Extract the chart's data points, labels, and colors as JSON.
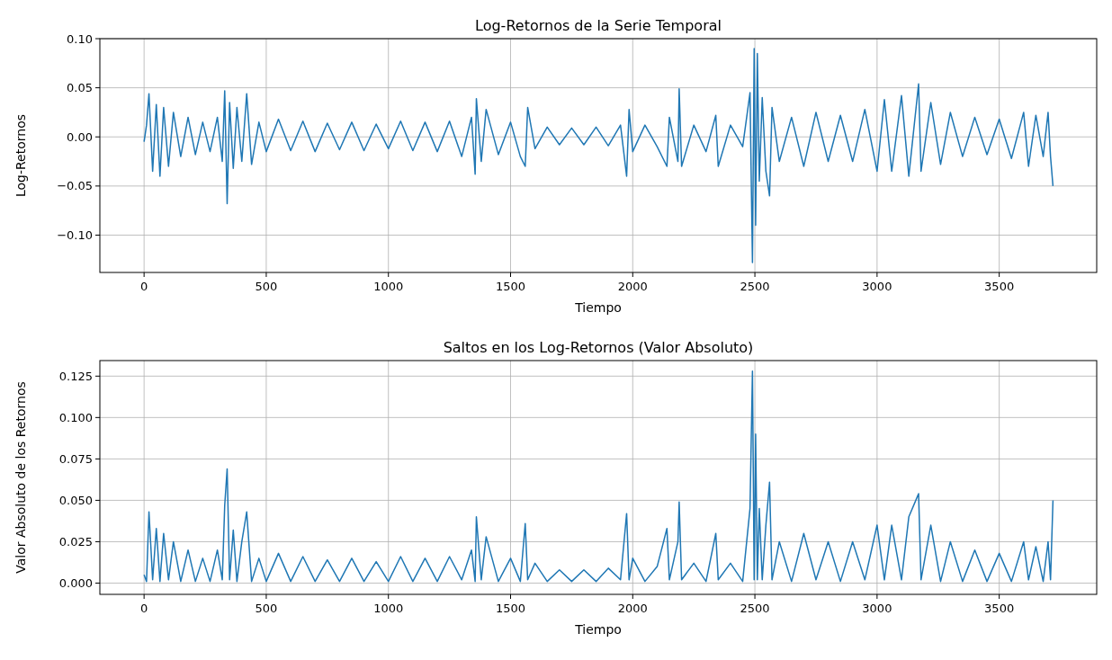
{
  "chart_data": [
    {
      "type": "line",
      "title": "Log-Retornos de la Serie Temporal",
      "xlabel": "Tiempo",
      "ylabel": "Log-Retornos",
      "xlim": [
        -181,
        3899
      ],
      "ylim": [
        -0.138,
        0.1
      ],
      "xticks": [
        0,
        500,
        1000,
        1500,
        2000,
        2500,
        3000,
        3500
      ],
      "yticks": [
        {
          "value": -0.1,
          "label": "−0.10"
        },
        {
          "value": -0.05,
          "label": "−0.05"
        },
        {
          "value": 0,
          "label": "0.00"
        },
        {
          "value": 0.05,
          "label": "0.05"
        },
        {
          "value": 0.1,
          "label": "0.10"
        }
      ],
      "grid": true,
      "line_style": "solid",
      "series": [
        {
          "color": "#1f77b4",
          "x": [
            0,
            10,
            20,
            35,
            50,
            65,
            80,
            100,
            120,
            150,
            180,
            210,
            240,
            270,
            300,
            320,
            330,
            340,
            350,
            365,
            380,
            400,
            420,
            440,
            470,
            500,
            550,
            600,
            650,
            700,
            750,
            800,
            850,
            900,
            950,
            1000,
            1050,
            1100,
            1150,
            1200,
            1250,
            1300,
            1340,
            1355,
            1360,
            1380,
            1400,
            1450,
            1500,
            1540,
            1560,
            1570,
            1600,
            1650,
            1700,
            1750,
            1800,
            1850,
            1900,
            1950,
            1975,
            1985,
            2000,
            2050,
            2100,
            2140,
            2150,
            2185,
            2190,
            2200,
            2250,
            2300,
            2340,
            2350,
            2400,
            2450,
            2480,
            2490,
            2497,
            2503,
            2510,
            2518,
            2530,
            2545,
            2560,
            2570,
            2600,
            2650,
            2700,
            2750,
            2800,
            2850,
            2900,
            2950,
            3000,
            3030,
            3060,
            3100,
            3130,
            3170,
            3180,
            3220,
            3260,
            3300,
            3350,
            3400,
            3450,
            3500,
            3550,
            3600,
            3620,
            3650,
            3680,
            3700,
            3710,
            3720
          ],
          "values": [
            -0.005,
            0.012,
            0.044,
            -0.035,
            0.033,
            -0.04,
            0.03,
            -0.03,
            0.025,
            -0.02,
            0.02,
            -0.018,
            0.015,
            -0.015,
            0.02,
            -0.025,
            0.047,
            -0.068,
            0.035,
            -0.032,
            0.03,
            -0.025,
            0.044,
            -0.028,
            0.015,
            -0.015,
            0.018,
            -0.014,
            0.016,
            -0.015,
            0.014,
            -0.013,
            0.015,
            -0.014,
            0.013,
            -0.012,
            0.016,
            -0.014,
            0.015,
            -0.015,
            0.016,
            -0.02,
            0.02,
            -0.038,
            0.039,
            -0.025,
            0.028,
            -0.018,
            0.015,
            -0.02,
            -0.03,
            0.03,
            -0.012,
            0.01,
            -0.008,
            0.009,
            -0.008,
            0.01,
            -0.009,
            0.012,
            -0.04,
            0.028,
            -0.015,
            0.012,
            -0.01,
            -0.03,
            0.02,
            -0.025,
            0.049,
            -0.03,
            0.012,
            -0.015,
            0.022,
            -0.03,
            0.012,
            -0.01,
            0.045,
            -0.128,
            0.09,
            -0.09,
            0.085,
            -0.045,
            0.04,
            -0.035,
            -0.06,
            0.03,
            -0.025,
            0.02,
            -0.03,
            0.025,
            -0.025,
            0.022,
            -0.025,
            0.028,
            -0.035,
            0.038,
            -0.035,
            0.042,
            -0.04,
            0.054,
            -0.035,
            0.035,
            -0.028,
            0.025,
            -0.02,
            0.02,
            -0.018,
            0.018,
            -0.022,
            0.025,
            -0.03,
            0.022,
            -0.02,
            0.025,
            -0.02,
            -0.05
          ]
        }
      ]
    },
    {
      "type": "line",
      "title": "Saltos en los Log-Retornos (Valor Absoluto)",
      "xlabel": "Tiempo",
      "ylabel": "Valor Absoluto de los Retornos",
      "xlim": [
        -181,
        3899
      ],
      "ylim": [
        -0.0068,
        0.1344
      ],
      "xticks": [
        0,
        500,
        1000,
        1500,
        2000,
        2500,
        3000,
        3500
      ],
      "yticks": [
        {
          "value": 0,
          "label": "0.000"
        },
        {
          "value": 0.025,
          "label": "0.025"
        },
        {
          "value": 0.05,
          "label": "0.050"
        },
        {
          "value": 0.075,
          "label": "0.075"
        },
        {
          "value": 0.1,
          "label": "0.100"
        },
        {
          "value": 0.125,
          "label": "0.125"
        }
      ],
      "grid": true,
      "line_style": "solid",
      "series": [
        {
          "color": "#1f77b4",
          "x": [
            0,
            10,
            20,
            35,
            50,
            65,
            80,
            100,
            120,
            150,
            180,
            210,
            240,
            270,
            300,
            320,
            330,
            340,
            350,
            365,
            380,
            400,
            420,
            440,
            470,
            500,
            550,
            600,
            650,
            700,
            750,
            800,
            850,
            900,
            950,
            1000,
            1050,
            1100,
            1150,
            1200,
            1250,
            1300,
            1340,
            1355,
            1360,
            1380,
            1400,
            1450,
            1500,
            1540,
            1560,
            1570,
            1600,
            1650,
            1700,
            1750,
            1800,
            1850,
            1900,
            1950,
            1975,
            1985,
            2000,
            2050,
            2100,
            2140,
            2150,
            2185,
            2190,
            2200,
            2250,
            2300,
            2340,
            2350,
            2400,
            2450,
            2480,
            2490,
            2497,
            2503,
            2510,
            2518,
            2530,
            2545,
            2560,
            2570,
            2600,
            2650,
            2700,
            2750,
            2800,
            2850,
            2900,
            2950,
            3000,
            3030,
            3060,
            3100,
            3130,
            3170,
            3180,
            3220,
            3260,
            3300,
            3350,
            3400,
            3450,
            3500,
            3550,
            3600,
            3620,
            3650,
            3680,
            3700,
            3710,
            3720
          ],
          "values": [
            0.005,
            0.001,
            0.043,
            0.002,
            0.033,
            0.001,
            0.03,
            0.002,
            0.025,
            0.001,
            0.02,
            0.001,
            0.015,
            0.001,
            0.02,
            0.002,
            0.047,
            0.069,
            0.002,
            0.032,
            0.001,
            0.025,
            0.043,
            0.001,
            0.015,
            0.001,
            0.018,
            0.001,
            0.016,
            0.001,
            0.014,
            0.001,
            0.015,
            0.001,
            0.013,
            0.001,
            0.016,
            0.001,
            0.015,
            0.001,
            0.016,
            0.002,
            0.02,
            0.001,
            0.04,
            0.002,
            0.028,
            0.001,
            0.015,
            0.001,
            0.036,
            0.002,
            0.012,
            0.001,
            0.008,
            0.001,
            0.008,
            0.001,
            0.009,
            0.002,
            0.042,
            0.002,
            0.015,
            0.001,
            0.01,
            0.033,
            0.002,
            0.025,
            0.049,
            0.002,
            0.012,
            0.001,
            0.03,
            0.002,
            0.012,
            0.001,
            0.045,
            0.128,
            0.002,
            0.09,
            0.002,
            0.045,
            0.002,
            0.035,
            0.061,
            0.002,
            0.025,
            0.001,
            0.03,
            0.002,
            0.025,
            0.001,
            0.025,
            0.002,
            0.035,
            0.002,
            0.035,
            0.002,
            0.04,
            0.054,
            0.002,
            0.035,
            0.001,
            0.025,
            0.001,
            0.02,
            0.001,
            0.018,
            0.001,
            0.025,
            0.002,
            0.022,
            0.001,
            0.025,
            0.002,
            0.05
          ]
        }
      ]
    }
  ]
}
